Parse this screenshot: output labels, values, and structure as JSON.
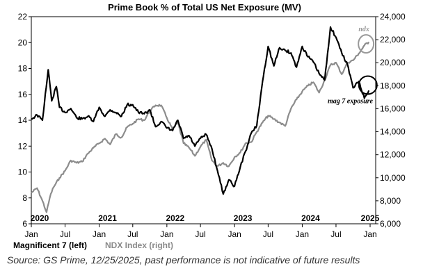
{
  "chart_data": {
    "type": "line",
    "title": "Prime Book % of Total US Net Exposure (MV)",
    "xlim": [
      "2020-01-01",
      "2025-01-31"
    ],
    "x_tick_labels": [
      "Jan",
      "Jul",
      "Jan",
      "Jul",
      "Jan",
      "Jul",
      "Jan",
      "Jul",
      "Jan",
      "Jul",
      "Jan"
    ],
    "x_tick_dates": [
      "2020-01-01",
      "2020-07-01",
      "2021-01-01",
      "2021-07-01",
      "2022-01-01",
      "2022-07-01",
      "2023-01-01",
      "2023-07-01",
      "2024-01-01",
      "2024-07-01",
      "2025-01-01"
    ],
    "year_labels": [
      {
        "text": "2020",
        "date": "2020-02-15"
      },
      {
        "text": "2021",
        "date": "2021-02-15"
      },
      {
        "text": "2022",
        "date": "2022-02-15"
      },
      {
        "text": "2023",
        "date": "2023-02-15"
      },
      {
        "text": "2024",
        "date": "2024-02-15"
      },
      {
        "text": "2025",
        "date": "2025-01-01"
      }
    ],
    "y_left": {
      "ylim": [
        6,
        22
      ],
      "ticks": [
        6,
        8,
        10,
        12,
        14,
        16,
        18,
        20,
        22
      ]
    },
    "y_right": {
      "ylim": [
        6000,
        24000
      ],
      "ticks": [
        6000,
        8000,
        10000,
        12000,
        14000,
        16000,
        18000,
        20000,
        22000,
        24000
      ],
      "tick_labels": [
        "6,000",
        "8,000",
        "10,000",
        "12,000",
        "14,000",
        "16,000",
        "18,000",
        "20,000",
        "22,000",
        "24,000"
      ]
    },
    "series": [
      {
        "name": "Magnificent 7 (left)",
        "axis": "left",
        "color": "#000000",
        "x": [
          "2020-01-01",
          "2020-02-01",
          "2020-03-01",
          "2020-04-01",
          "2020-04-20",
          "2020-05-15",
          "2020-06-01",
          "2020-07-01",
          "2020-08-01",
          "2020-09-01",
          "2020-10-01",
          "2020-11-01",
          "2020-12-01",
          "2021-01-01",
          "2021-02-01",
          "2021-03-01",
          "2021-04-01",
          "2021-05-01",
          "2021-06-01",
          "2021-07-01",
          "2021-08-01",
          "2021-09-01",
          "2021-10-01",
          "2021-11-01",
          "2021-12-01",
          "2022-01-01",
          "2022-02-01",
          "2022-03-01",
          "2022-04-01",
          "2022-05-01",
          "2022-06-01",
          "2022-07-01",
          "2022-08-01",
          "2022-09-01",
          "2022-10-01",
          "2022-11-01",
          "2022-12-01",
          "2023-01-01",
          "2023-02-01",
          "2023-03-01",
          "2023-04-01",
          "2023-05-01",
          "2023-06-01",
          "2023-07-01",
          "2023-08-01",
          "2023-09-01",
          "2023-10-01",
          "2023-11-01",
          "2023-12-01",
          "2024-01-01",
          "2024-02-01",
          "2024-03-01",
          "2024-04-01",
          "2024-05-01",
          "2024-06-01",
          "2024-07-01",
          "2024-08-01",
          "2024-09-01",
          "2024-10-01",
          "2024-11-01",
          "2024-12-01",
          "2024-12-25"
        ],
        "values": [
          14.1,
          14.4,
          14.0,
          17.9,
          15.5,
          16.6,
          15.0,
          14.6,
          14.9,
          14.2,
          14.1,
          14.3,
          13.9,
          15.0,
          14.3,
          14.8,
          14.6,
          14.3,
          15.2,
          15.2,
          14.6,
          14.5,
          14.8,
          13.5,
          13.9,
          13.4,
          13.2,
          14.0,
          12.6,
          12.8,
          12.0,
          12.6,
          12.9,
          11.8,
          10.1,
          8.3,
          9.4,
          8.9,
          10.4,
          11.6,
          13.0,
          13.6,
          17.0,
          19.7,
          18.2,
          19.6,
          19.4,
          19.2,
          18.1,
          19.7,
          18.9,
          18.5,
          17.6,
          17.1,
          21.2,
          20.4,
          19.2,
          18.3,
          16.5,
          17.0,
          15.7,
          16.3
        ]
      },
      {
        "name": "NDX Index (right)",
        "axis": "right",
        "color": "#8c8c8c",
        "x": [
          "2020-01-01",
          "2020-02-01",
          "2020-03-01",
          "2020-03-23",
          "2020-04-15",
          "2020-05-01",
          "2020-06-01",
          "2020-07-01",
          "2020-08-01",
          "2020-09-01",
          "2020-10-01",
          "2020-11-01",
          "2020-12-01",
          "2021-01-01",
          "2021-02-01",
          "2021-03-01",
          "2021-04-01",
          "2021-05-01",
          "2021-06-01",
          "2021-07-01",
          "2021-08-01",
          "2021-09-01",
          "2021-10-01",
          "2021-11-01",
          "2021-12-01",
          "2022-01-01",
          "2022-02-01",
          "2022-03-01",
          "2022-04-01",
          "2022-05-01",
          "2022-06-01",
          "2022-07-01",
          "2022-08-01",
          "2022-09-01",
          "2022-10-01",
          "2022-11-01",
          "2022-12-01",
          "2023-01-01",
          "2023-02-01",
          "2023-03-01",
          "2023-04-01",
          "2023-05-01",
          "2023-06-01",
          "2023-07-01",
          "2023-08-01",
          "2023-09-01",
          "2023-10-01",
          "2023-11-01",
          "2023-12-01",
          "2024-01-01",
          "2024-02-01",
          "2024-03-01",
          "2024-04-01",
          "2024-05-01",
          "2024-06-01",
          "2024-07-01",
          "2024-08-01",
          "2024-09-01",
          "2024-10-01",
          "2024-11-01",
          "2024-12-01",
          "2024-12-25"
        ],
        "values": [
          8700,
          9100,
          8000,
          7000,
          8600,
          9200,
          10000,
          10600,
          11500,
          11300,
          11400,
          12100,
          12600,
          13000,
          13400,
          12900,
          13800,
          13500,
          14400,
          14700,
          15100,
          15000,
          15800,
          16300,
          16300,
          15200,
          14200,
          14800,
          13000,
          12600,
          11900,
          12700,
          13300,
          11500,
          11000,
          11300,
          11000,
          11800,
          12200,
          13000,
          13100,
          14000,
          14800,
          15400,
          15100,
          14800,
          14500,
          16000,
          16800,
          17500,
          18000,
          18300,
          17400,
          18500,
          19800,
          20000,
          19000,
          20000,
          20200,
          20800,
          21500,
          21800
        ]
      }
    ],
    "annotations": [
      {
        "text": "ndx",
        "color": "#999999",
        "date": "2024-12-10",
        "value": 22000,
        "axis": "right"
      },
      {
        "text": "mag 7 exposure",
        "color": "#000000",
        "date": "2024-12-05",
        "value": 16.5,
        "axis": "left"
      }
    ],
    "grid": false,
    "legend": "bottom-left"
  },
  "legend": {
    "mag7_label": "Magnificent 7 (left)",
    "ndx_label": "NDX Index (right)"
  },
  "footer": {
    "source": "Source: GS Prime, 12/25/2025, past performance is not indicative of future results"
  }
}
